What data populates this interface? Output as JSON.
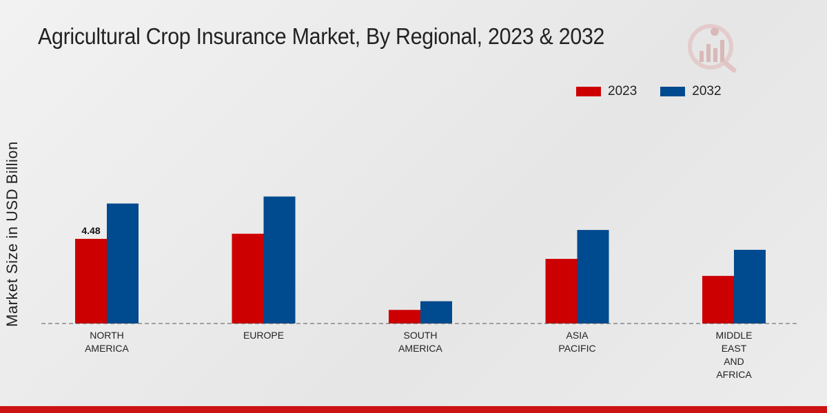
{
  "chart_data": {
    "type": "bar",
    "title": "Agricultural Crop Insurance Market, By Regional, 2023 & 2032",
    "ylabel": "Market Size in USD Billion",
    "xlabel": "",
    "categories": [
      [
        "NORTH",
        "AMERICA"
      ],
      [
        "EUROPE"
      ],
      [
        "SOUTH",
        "AMERICA"
      ],
      [
        "ASIA",
        "PACIFIC"
      ],
      [
        "MIDDLE",
        "EAST",
        "AND",
        "AFRICA"
      ]
    ],
    "series": [
      {
        "name": "2023",
        "color": "#cc0000",
        "values": [
          4.48,
          4.75,
          0.72,
          3.42,
          2.52
        ]
      },
      {
        "name": "2032",
        "color": "#004a8f",
        "values": [
          6.35,
          6.72,
          1.18,
          4.95,
          3.9
        ]
      }
    ],
    "data_labels": [
      {
        "series": 0,
        "category": 0,
        "text": "4.48"
      }
    ],
    "ylim": [
      0,
      11
    ],
    "grid": false,
    "legend": "top-right"
  }
}
